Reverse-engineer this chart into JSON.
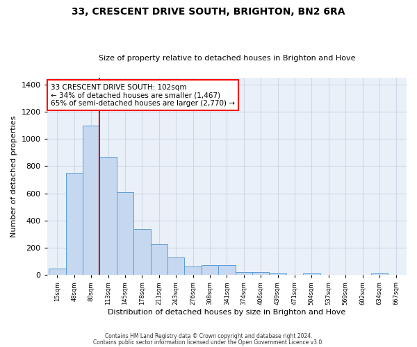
{
  "title": "33, CRESCENT DRIVE SOUTH, BRIGHTON, BN2 6RA",
  "subtitle": "Size of property relative to detached houses in Brighton and Hove",
  "xlabel": "Distribution of detached houses by size in Brighton and Hove",
  "ylabel": "Number of detached properties",
  "footnote1": "Contains HM Land Registry data © Crown copyright and database right 2024.",
  "footnote2": "Contains public sector information licensed under the Open Government Licence v3.0.",
  "annotation_line1": "33 CRESCENT DRIVE SOUTH: 102sqm",
  "annotation_line2": "← 34% of detached houses are smaller (1,467)",
  "annotation_line3": "65% of semi-detached houses are larger (2,770) →",
  "bar_color": "#c5d8f0",
  "bar_edge_color": "#5b9bd5",
  "grid_color": "#d0d8e8",
  "background_color": "#eaf0f8",
  "marker_line_color": "#cc0000",
  "marker_bar_index": 2,
  "categories": [
    "15sqm",
    "48sqm",
    "80sqm",
    "113sqm",
    "145sqm",
    "178sqm",
    "211sqm",
    "243sqm",
    "276sqm",
    "308sqm",
    "341sqm",
    "374sqm",
    "406sqm",
    "439sqm",
    "471sqm",
    "504sqm",
    "537sqm",
    "569sqm",
    "602sqm",
    "634sqm",
    "667sqm"
  ],
  "values": [
    50,
    750,
    1100,
    870,
    610,
    340,
    225,
    130,
    65,
    75,
    75,
    25,
    20,
    12,
    0,
    10,
    0,
    0,
    0,
    12,
    0
  ],
  "ylim": [
    0,
    1450
  ],
  "yticks": [
    0,
    200,
    400,
    600,
    800,
    1000,
    1200,
    1400
  ],
  "title_fontsize": 10,
  "subtitle_fontsize": 8,
  "ylabel_fontsize": 8,
  "xlabel_fontsize": 8,
  "annotation_fontsize": 7.5
}
